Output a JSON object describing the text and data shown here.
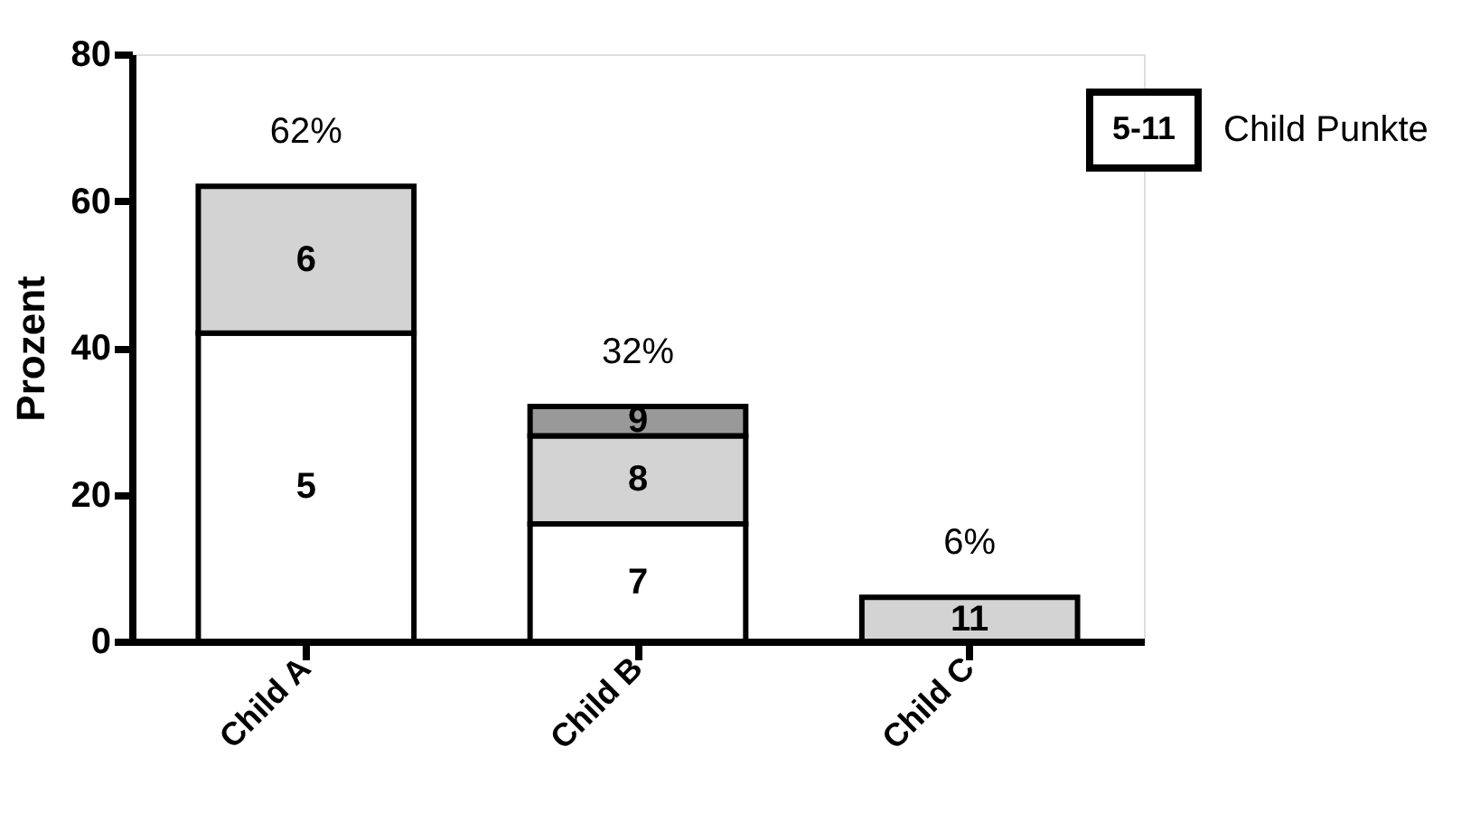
{
  "chart_data": {
    "type": "bar",
    "stacked": true,
    "categories": [
      "Child A",
      "Child B",
      "Child C"
    ],
    "ylabel": "Prozent",
    "ylim": [
      0,
      80
    ],
    "yticks": [
      0,
      20,
      40,
      60,
      80
    ],
    "grid": false,
    "series": [
      {
        "name": "5",
        "color": "#ffffff",
        "values": [
          42,
          null,
          null
        ]
      },
      {
        "name": "6",
        "color": "#d3d3d3",
        "values": [
          20,
          null,
          null
        ]
      },
      {
        "name": "7",
        "color": "#ffffff",
        "values": [
          null,
          16,
          null
        ]
      },
      {
        "name": "8",
        "color": "#d3d3d3",
        "values": [
          null,
          12,
          null
        ]
      },
      {
        "name": "9",
        "color": "#999999",
        "values": [
          null,
          4,
          null
        ]
      },
      {
        "name": "11",
        "color": "#d3d3d3",
        "values": [
          null,
          null,
          6
        ]
      }
    ],
    "totals": [
      "62%",
      "32%",
      "6%"
    ],
    "annotations": [
      "5-11",
      "Child Punkte"
    ]
  }
}
